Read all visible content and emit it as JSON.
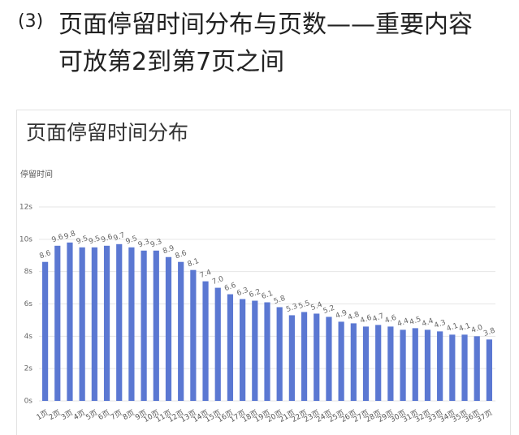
{
  "heading": {
    "number": "(3)",
    "text": "页面停留时间分布与页数——重要内容可放第2到第7页之间"
  },
  "chart_data": {
    "type": "bar",
    "title": "页面停留时间分布",
    "y_label": "停留时间",
    "categories": [
      "1页",
      "2页",
      "3页",
      "4页",
      "5页",
      "6页",
      "7页",
      "8页",
      "9页",
      "10页",
      "11页",
      "12页",
      "13页",
      "14页",
      "15页",
      "16页",
      "17页",
      "18页",
      "19页",
      "20页",
      "21页",
      "22页",
      "23页",
      "24页",
      "25页",
      "26页",
      "27页",
      "28页",
      "29页",
      "30页",
      "31页",
      "32页",
      "33页",
      "34页",
      "35页",
      "36页",
      "37页"
    ],
    "values": [
      8.6,
      9.6,
      9.8,
      9.5,
      9.5,
      9.6,
      9.7,
      9.5,
      9.3,
      9.3,
      8.9,
      8.6,
      8.1,
      7.4,
      7.0,
      6.6,
      6.3,
      6.2,
      6.1,
      5.8,
      5.3,
      5.5,
      5.4,
      5.2,
      4.9,
      4.8,
      4.6,
      4.7,
      4.6,
      4.4,
      4.5,
      4.4,
      4.3,
      4.1,
      4.1,
      4.0,
      3.8
    ],
    "value_labels": [
      "8.6",
      "9.6",
      "9.8",
      "9.5",
      "9.5",
      "9.6",
      "9.7",
      "9.5",
      "9.3",
      "9.3",
      "8.9",
      "8.6",
      "8.1",
      "7.4",
      "7.0",
      "6.6",
      "6.3",
      "6.2",
      "6.1",
      "5.8",
      "5.3",
      "5.5",
      "5.4",
      "5.2",
      "4.9",
      "4.8",
      "4.6",
      "4.7",
      "4.6",
      "4.4",
      "4.5",
      "4.4",
      "4.3",
      "4.1",
      "4.1",
      "4.0",
      "3.8"
    ],
    "color": "#5b78d2",
    "ylim": [
      0,
      12
    ],
    "yticks": [
      {
        "value": 0,
        "label": "0s"
      },
      {
        "value": 2,
        "label": "2s"
      },
      {
        "value": 4,
        "label": "4s"
      },
      {
        "value": 6,
        "label": "6s"
      },
      {
        "value": 8,
        "label": "8s"
      },
      {
        "value": 10,
        "label": "10s"
      },
      {
        "value": 12,
        "label": "12s"
      }
    ],
    "grid": true
  }
}
